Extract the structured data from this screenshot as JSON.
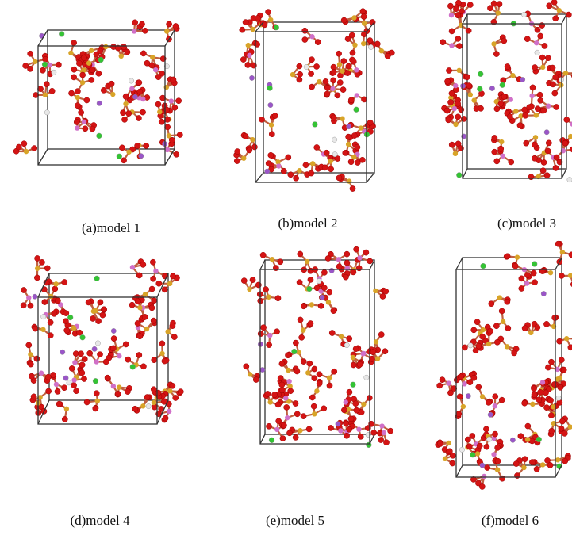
{
  "panels": [
    {
      "caption": "(a)model 1"
    },
    {
      "caption": "(b)model 2"
    },
    {
      "caption": "(c)model 3"
    },
    {
      "caption": "(d)model 4"
    },
    {
      "caption": "(e)model 5"
    },
    {
      "caption": "(f)model 6"
    }
  ]
}
